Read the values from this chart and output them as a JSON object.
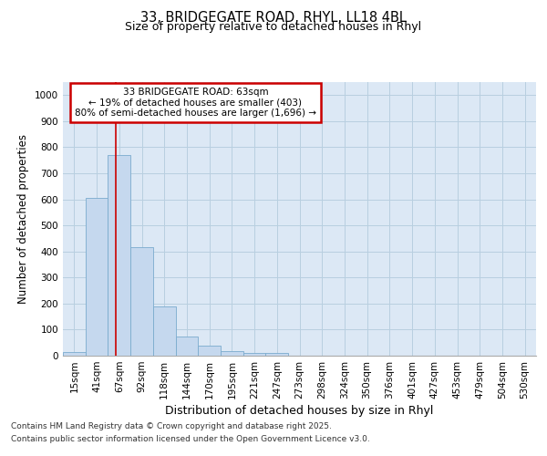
{
  "title_line1": "33, BRIDGEGATE ROAD, RHYL, LL18 4BL",
  "title_line2": "Size of property relative to detached houses in Rhyl",
  "xlabel": "Distribution of detached houses by size in Rhyl",
  "ylabel": "Number of detached properties",
  "categories": [
    "15sqm",
    "41sqm",
    "67sqm",
    "92sqm",
    "118sqm",
    "144sqm",
    "170sqm",
    "195sqm",
    "221sqm",
    "247sqm",
    "273sqm",
    "298sqm",
    "324sqm",
    "350sqm",
    "376sqm",
    "401sqm",
    "427sqm",
    "453sqm",
    "479sqm",
    "504sqm",
    "530sqm"
  ],
  "values": [
    13,
    605,
    770,
    415,
    190,
    75,
    38,
    18,
    12,
    12,
    0,
    0,
    0,
    0,
    0,
    0,
    0,
    0,
    0,
    0,
    0
  ],
  "bar_color": "#c5d8ee",
  "bar_edge_color": "#7aabce",
  "vline_x": 1.85,
  "vline_color": "#cc0000",
  "ann_text_line1": "33 BRIDGEGATE ROAD: 63sqm",
  "ann_text_line2": "← 19% of detached houses are smaller (403)",
  "ann_text_line3": "80% of semi-detached houses are larger (1,696) →",
  "ann_box_color": "#cc0000",
  "ann_bg_color": "#ffffff",
  "ylim": [
    0,
    1050
  ],
  "yticks": [
    0,
    100,
    200,
    300,
    400,
    500,
    600,
    700,
    800,
    900,
    1000
  ],
  "grid_color": "#b8cfe0",
  "bg_color": "#dce8f5",
  "footer_line1": "Contains HM Land Registry data © Crown copyright and database right 2025.",
  "footer_line2": "Contains public sector information licensed under the Open Government Licence v3.0.",
  "title_fontsize": 10.5,
  "subtitle_fontsize": 9.0,
  "tick_fontsize": 7.5,
  "ylabel_fontsize": 8.5,
  "xlabel_fontsize": 9.0,
  "ann_fontsize": 7.5,
  "footer_fontsize": 6.5
}
